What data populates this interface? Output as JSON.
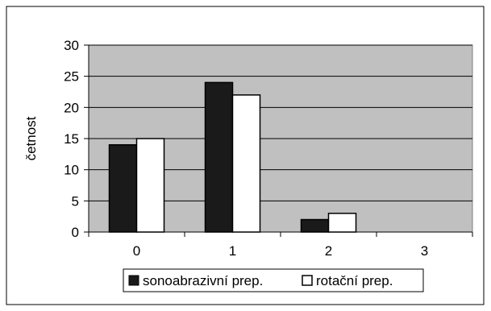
{
  "chart_data": {
    "type": "bar",
    "categories": [
      "0",
      "1",
      "2",
      "3"
    ],
    "series": [
      {
        "name": "sonoabrazivní prep.",
        "values": [
          14,
          24,
          2,
          0
        ],
        "color": "#1a1a1a"
      },
      {
        "name": "rotační prep.",
        "values": [
          15,
          22,
          3,
          0
        ],
        "color": "#ffffff"
      }
    ],
    "title": "",
    "xlabel": "",
    "ylabel": "četnost",
    "ylim": [
      0,
      30
    ],
    "yticks": [
      "0",
      "5",
      "10",
      "15",
      "20",
      "25",
      "30"
    ],
    "grid": true,
    "plot_background": "#c0c0c0",
    "legend_position": "bottom"
  }
}
